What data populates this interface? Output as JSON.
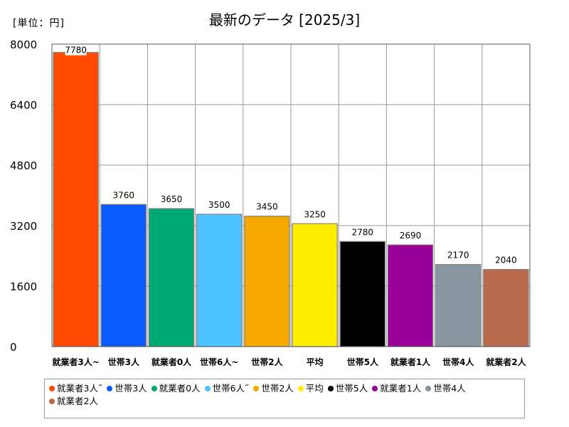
{
  "unit_label": "[単位：円]",
  "chart_data": {
    "type": "bar",
    "title": "最新のデータ [2025/3]",
    "categories": [
      "就業者3人~",
      "世帯3人",
      "就業者0人",
      "世帯6人~",
      "世帯2人",
      "平均",
      "世帯5人",
      "就業者1人",
      "世帯4人",
      "就業者2人"
    ],
    "legend_labels": [
      "就業者3人˜",
      "世帯3人",
      "就業者0人",
      "世帯6人˜",
      "世帯2人",
      "平均",
      "世帯5人",
      "就業者1人",
      "世帯4人",
      "就業者2人"
    ],
    "values": [
      7780,
      3760,
      3650,
      3500,
      3450,
      3250,
      2780,
      2690,
      2170,
      2040
    ],
    "colors": [
      "#ff4a00",
      "#0a5cff",
      "#00a873",
      "#4dc3ff",
      "#f5a800",
      "#ffee00",
      "#000000",
      "#990099",
      "#8896a0",
      "#b86a4a"
    ],
    "yticks": [
      0,
      1600,
      3200,
      4800,
      6400,
      8000
    ],
    "ylim": [
      0,
      8000
    ],
    "grid": true,
    "legend_position": "bottom"
  }
}
